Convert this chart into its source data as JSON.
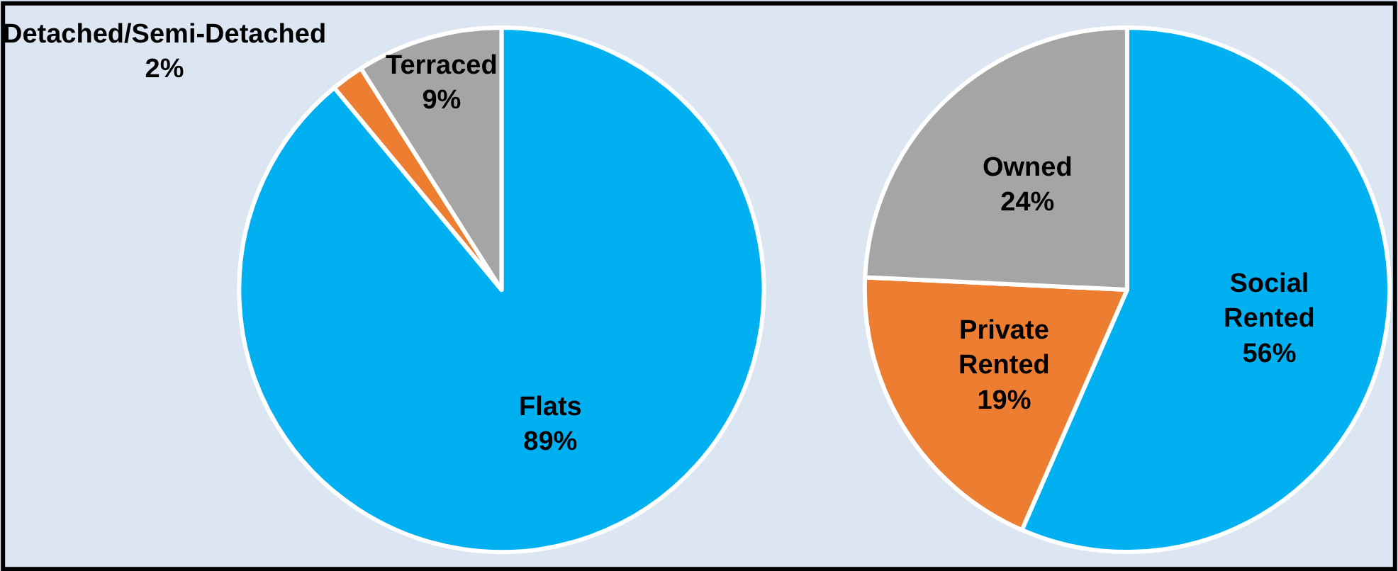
{
  "chart_data": [
    {
      "type": "pie",
      "categories": [
        "Flats",
        "Detached/Semi-Detached",
        "Terraced"
      ],
      "values": [
        89,
        2,
        9
      ],
      "value_labels": [
        "89%",
        "2%",
        "9%"
      ],
      "colors": [
        "#00b0f0",
        "#ed7d31",
        "#a5a5a5"
      ],
      "legend": false
    },
    {
      "type": "pie",
      "categories": [
        "Social Rented",
        "Private Rented",
        "Owned"
      ],
      "values": [
        56,
        19,
        24
      ],
      "value_labels": [
        "56%",
        "19%",
        "24%"
      ],
      "colors": [
        "#00b0f0",
        "#ed7d31",
        "#a5a5a5"
      ],
      "legend": false
    }
  ]
}
